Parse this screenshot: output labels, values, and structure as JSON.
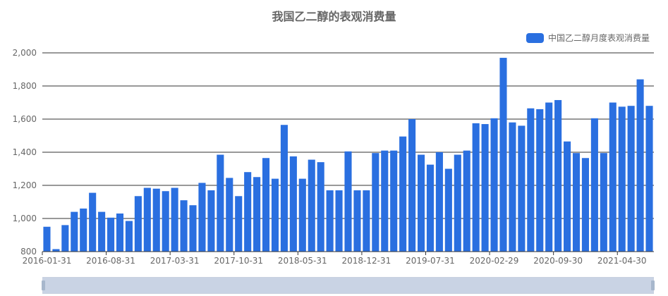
{
  "chart_data": {
    "type": "bar",
    "title": "我国乙二醇的表观消费量",
    "legend": "top-right",
    "grid": true,
    "ylim": [
      800,
      2000
    ],
    "yticks": [
      800,
      1000,
      1200,
      1400,
      1600,
      1800,
      2000
    ],
    "ytick_labels": [
      "800",
      "1,000",
      "1,200",
      "1,400",
      "1,600",
      "1,800",
      "2,000"
    ],
    "xtick_labels": [
      "2016-01-31",
      "2016-08-31",
      "2017-03-31",
      "2017-10-31",
      "2018-05-31",
      "2018-12-31",
      "2019-07-31",
      "2020-02-29",
      "2020-09-30",
      "2021-04-30"
    ],
    "xtick_every": 7,
    "colors": {
      "bar": "#2A6FE0",
      "grid": "#333333",
      "axis_text": "#666666"
    },
    "series": [
      {
        "name": "中国乙二醇月度表观消费量",
        "values": [
          950,
          815,
          960,
          1040,
          1060,
          1155,
          1040,
          1005,
          1030,
          985,
          1135,
          1185,
          1180,
          1165,
          1185,
          1110,
          1080,
          1215,
          1170,
          1385,
          1245,
          1135,
          1280,
          1250,
          1365,
          1240,
          1565,
          1375,
          1240,
          1355,
          1340,
          1170,
          1170,
          1405,
          1170,
          1170,
          1395,
          1410,
          1410,
          1495,
          1600,
          1385,
          1325,
          1400,
          1300,
          1385,
          1410,
          1575,
          1570,
          1605,
          1970,
          1580,
          1560,
          1665,
          1660,
          1700,
          1715,
          1465,
          1395,
          1365,
          1605,
          1395,
          1700,
          1675,
          1680,
          1840,
          1680
        ]
      }
    ]
  }
}
